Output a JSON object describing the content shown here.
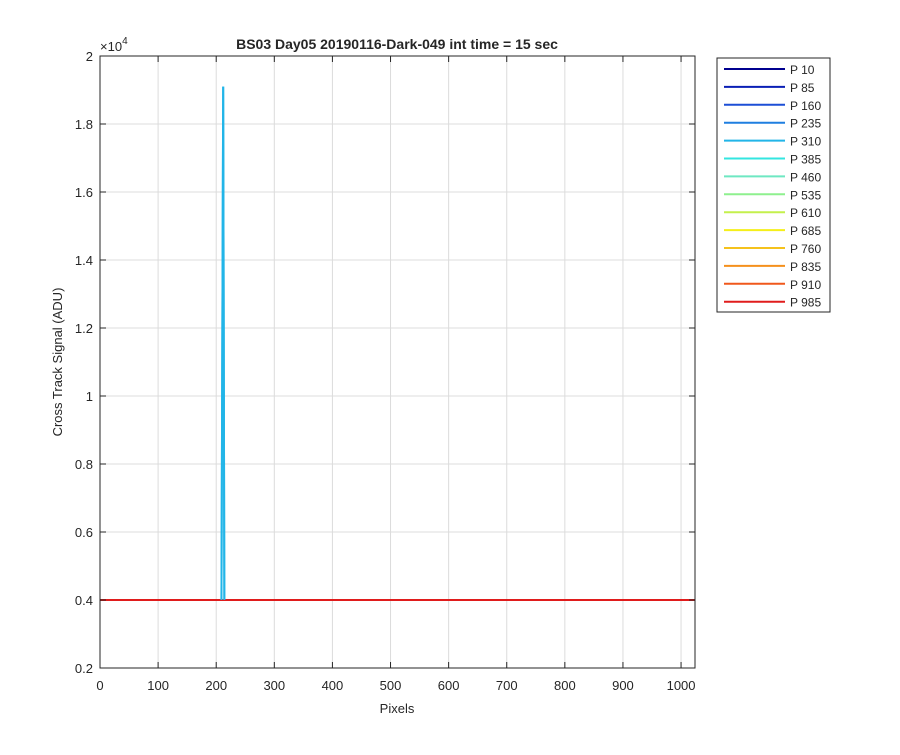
{
  "chart_data": {
    "type": "line",
    "title": "BS03 Day05 20190116-Dark-049 int time = 15 sec",
    "xlabel": "Pixels",
    "ylabel": "Cross Track Signal (ADU)",
    "y_exponent_label": "×10",
    "y_exponent": "4",
    "xlim": [
      0,
      1024
    ],
    "ylim": [
      0.2,
      2
    ],
    "x_ticks": [
      0,
      100,
      200,
      300,
      400,
      500,
      600,
      700,
      800,
      900,
      1000
    ],
    "x_tick_labels": [
      "0",
      "100",
      "200",
      "300",
      "400",
      "500",
      "600",
      "700",
      "800",
      "900",
      "1000"
    ],
    "y_ticks": [
      0.2,
      0.4,
      0.6,
      0.8,
      1,
      1.2,
      1.4,
      1.6,
      1.8,
      2
    ],
    "y_tick_labels": [
      "0.2",
      "0.4",
      "0.6",
      "0.8",
      "1",
      "1.2",
      "1.4",
      "1.6",
      "1.8",
      "2"
    ],
    "grid": true,
    "legend_position": "outside-top-right",
    "baseline_value": 0.4,
    "series": [
      {
        "name": "P 10",
        "color": "#00008f"
      },
      {
        "name": "P 85",
        "color": "#0a1fb5"
      },
      {
        "name": "P 160",
        "color": "#1c4fd6"
      },
      {
        "name": "P 235",
        "color": "#1f7fe0"
      },
      {
        "name": "P 310",
        "color": "#22b5e8",
        "spike": {
          "x_start": 209,
          "x_peak": 212,
          "x_end": 214,
          "peak_value": 1.91
        }
      },
      {
        "name": "P 385",
        "color": "#33e6e0"
      },
      {
        "name": "P 460",
        "color": "#6ee8c2"
      },
      {
        "name": "P 535",
        "color": "#8ef08e"
      },
      {
        "name": "P 610",
        "color": "#c4f04c"
      },
      {
        "name": "P 685",
        "color": "#f5ef1a"
      },
      {
        "name": "P 760",
        "color": "#f5c21c"
      },
      {
        "name": "P 835",
        "color": "#f5901c"
      },
      {
        "name": "P 910",
        "color": "#f0581c"
      },
      {
        "name": "P 985",
        "color": "#e01c1c"
      }
    ]
  }
}
